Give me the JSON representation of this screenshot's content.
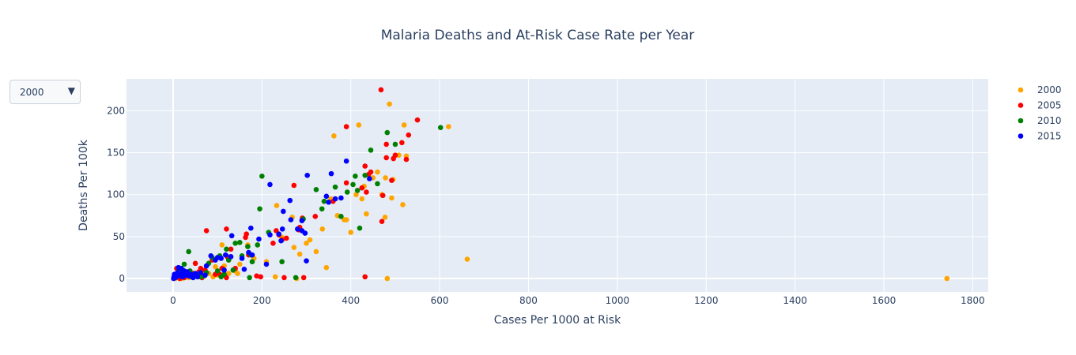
{
  "chart_data": {
    "type": "scatter",
    "title": "Malaria Deaths and At-Risk Case Rate per Year",
    "xlabel": "Cases Per 1000 at Risk",
    "ylabel": "Deaths Per 100k",
    "xlim": [
      -105,
      1835
    ],
    "ylim": [
      -16,
      238
    ],
    "xticks": [
      0,
      200,
      400,
      600,
      800,
      1000,
      1200,
      1400,
      1600,
      1800
    ],
    "yticks": [
      0,
      50,
      100,
      150,
      200
    ],
    "grid": true,
    "legend_position": "top-right",
    "series": [
      {
        "name": "2000",
        "color": "#FFA500",
        "points": [
          [
            1742,
            0
          ],
          [
            662,
            23
          ],
          [
            620,
            181
          ],
          [
            525,
            146
          ],
          [
            520,
            183
          ],
          [
            517,
            88
          ],
          [
            508,
            147
          ],
          [
            495,
            118
          ],
          [
            492,
            96
          ],
          [
            487,
            208
          ],
          [
            482,
            0
          ],
          [
            478,
            120
          ],
          [
            477,
            73
          ],
          [
            470,
            100
          ],
          [
            460,
            127
          ],
          [
            450,
            120
          ],
          [
            435,
            77
          ],
          [
            430,
            110
          ],
          [
            425,
            95
          ],
          [
            418,
            183
          ],
          [
            412,
            100
          ],
          [
            400,
            55
          ],
          [
            390,
            70
          ],
          [
            385,
            70
          ],
          [
            370,
            75
          ],
          [
            362,
            170
          ],
          [
            355,
            95
          ],
          [
            345,
            13
          ],
          [
            336,
            59
          ],
          [
            322,
            32
          ],
          [
            308,
            46
          ],
          [
            300,
            42
          ],
          [
            285,
            29
          ],
          [
            278,
            0
          ],
          [
            272,
            37
          ],
          [
            268,
            73
          ],
          [
            245,
            49
          ],
          [
            233,
            87
          ],
          [
            230,
            2
          ],
          [
            210,
            20
          ],
          [
            182,
            24
          ],
          [
            168,
            40
          ],
          [
            150,
            17
          ],
          [
            145,
            6
          ],
          [
            140,
            9
          ],
          [
            125,
            6
          ],
          [
            115,
            15
          ],
          [
            110,
            40
          ],
          [
            100,
            4
          ],
          [
            95,
            14
          ],
          [
            90,
            2
          ],
          [
            80,
            6
          ],
          [
            70,
            9
          ],
          [
            62,
            2
          ],
          [
            55,
            4
          ],
          [
            48,
            5
          ],
          [
            40,
            3
          ],
          [
            35,
            1
          ],
          [
            30,
            2
          ],
          [
            25,
            1
          ],
          [
            20,
            0
          ],
          [
            15,
            1
          ],
          [
            10,
            2
          ],
          [
            5,
            0
          ],
          [
            2,
            1
          ]
        ]
      },
      {
        "name": "2005",
        "color": "#FF0000",
        "points": [
          [
            550,
            189
          ],
          [
            530,
            171
          ],
          [
            525,
            142
          ],
          [
            515,
            162
          ],
          [
            500,
            147
          ],
          [
            496,
            143
          ],
          [
            492,
            117
          ],
          [
            480,
            160
          ],
          [
            480,
            144
          ],
          [
            472,
            99
          ],
          [
            470,
            68
          ],
          [
            468,
            225
          ],
          [
            445,
            127
          ],
          [
            440,
            124
          ],
          [
            435,
            103
          ],
          [
            432,
            134
          ],
          [
            432,
            2
          ],
          [
            425,
            108
          ],
          [
            390,
            181
          ],
          [
            390,
            114
          ],
          [
            360,
            92
          ],
          [
            320,
            74
          ],
          [
            294,
            1
          ],
          [
            291,
            72
          ],
          [
            285,
            61
          ],
          [
            282,
            58
          ],
          [
            272,
            111
          ],
          [
            255,
            48
          ],
          [
            250,
            1
          ],
          [
            245,
            46
          ],
          [
            238,
            52
          ],
          [
            232,
            57
          ],
          [
            225,
            42
          ],
          [
            197,
            2
          ],
          [
            188,
            3
          ],
          [
            170,
            28
          ],
          [
            165,
            53
          ],
          [
            163,
            49
          ],
          [
            140,
            12
          ],
          [
            130,
            35
          ],
          [
            122,
            26
          ],
          [
            120,
            59
          ],
          [
            120,
            1
          ],
          [
            115,
            4
          ],
          [
            110,
            12
          ],
          [
            105,
            5
          ],
          [
            95,
            5
          ],
          [
            88,
            22
          ],
          [
            75,
            57
          ],
          [
            72,
            10
          ],
          [
            65,
            1
          ],
          [
            62,
            12
          ],
          [
            58,
            8
          ],
          [
            55,
            3
          ],
          [
            50,
            18
          ],
          [
            45,
            6
          ],
          [
            40,
            2
          ],
          [
            35,
            6
          ],
          [
            30,
            3
          ],
          [
            25,
            1
          ],
          [
            22,
            7
          ],
          [
            18,
            2
          ],
          [
            15,
            0
          ],
          [
            12,
            4
          ],
          [
            8,
            12
          ],
          [
            5,
            1
          ]
        ]
      },
      {
        "name": "2010",
        "color": "#008000",
        "points": [
          [
            602,
            180
          ],
          [
            500,
            160
          ],
          [
            482,
            174
          ],
          [
            460,
            113
          ],
          [
            445,
            153
          ],
          [
            432,
            123
          ],
          [
            420,
            60
          ],
          [
            415,
            105
          ],
          [
            410,
            122
          ],
          [
            405,
            112
          ],
          [
            392,
            103
          ],
          [
            378,
            74
          ],
          [
            365,
            109
          ],
          [
            340,
            92
          ],
          [
            335,
            83
          ],
          [
            322,
            106
          ],
          [
            293,
            71
          ],
          [
            276,
            1
          ],
          [
            245,
            20
          ],
          [
            215,
            55
          ],
          [
            200,
            122
          ],
          [
            195,
            83
          ],
          [
            190,
            40
          ],
          [
            178,
            20
          ],
          [
            175,
            28
          ],
          [
            172,
            1
          ],
          [
            168,
            38
          ],
          [
            155,
            27
          ],
          [
            150,
            43
          ],
          [
            140,
            42
          ],
          [
            135,
            10
          ],
          [
            125,
            22
          ],
          [
            120,
            35
          ],
          [
            115,
            5
          ],
          [
            108,
            2
          ],
          [
            105,
            27
          ],
          [
            100,
            9
          ],
          [
            88,
            25
          ],
          [
            80,
            18
          ],
          [
            75,
            7
          ],
          [
            70,
            3
          ],
          [
            62,
            2
          ],
          [
            55,
            5
          ],
          [
            42,
            2
          ],
          [
            38,
            9
          ],
          [
            35,
            32
          ],
          [
            30,
            5
          ],
          [
            25,
            17
          ],
          [
            22,
            10
          ],
          [
            15,
            12
          ],
          [
            12,
            8
          ],
          [
            8,
            4
          ],
          [
            5,
            2
          ],
          [
            2,
            1
          ]
        ]
      },
      {
        "name": "2015",
        "color": "#0000FF",
        "points": [
          [
            442,
            119
          ],
          [
            390,
            140
          ],
          [
            378,
            96
          ],
          [
            365,
            95
          ],
          [
            356,
            125
          ],
          [
            350,
            91
          ],
          [
            345,
            98
          ],
          [
            302,
            123
          ],
          [
            300,
            21
          ],
          [
            297,
            54
          ],
          [
            290,
            57
          ],
          [
            290,
            69
          ],
          [
            280,
            59
          ],
          [
            263,
            93
          ],
          [
            265,
            70
          ],
          [
            248,
            80
          ],
          [
            246,
            59
          ],
          [
            243,
            45
          ],
          [
            238,
            53
          ],
          [
            218,
            52
          ],
          [
            218,
            112
          ],
          [
            210,
            17
          ],
          [
            193,
            47
          ],
          [
            178,
            28
          ],
          [
            175,
            60
          ],
          [
            170,
            31
          ],
          [
            160,
            11
          ],
          [
            155,
            24
          ],
          [
            132,
            51
          ],
          [
            130,
            26
          ],
          [
            118,
            28
          ],
          [
            115,
            10
          ],
          [
            108,
            24
          ],
          [
            100,
            25
          ],
          [
            95,
            22
          ],
          [
            85,
            27
          ],
          [
            75,
            15
          ],
          [
            72,
            4
          ],
          [
            62,
            7
          ],
          [
            55,
            2
          ],
          [
            50,
            6
          ],
          [
            45,
            1
          ],
          [
            40,
            5
          ],
          [
            35,
            3
          ],
          [
            32,
            8
          ],
          [
            28,
            4
          ],
          [
            25,
            9
          ],
          [
            22,
            2
          ],
          [
            20,
            6
          ],
          [
            18,
            12
          ],
          [
            15,
            3
          ],
          [
            12,
            13
          ],
          [
            10,
            7
          ],
          [
            8,
            4
          ],
          [
            6,
            2
          ],
          [
            5,
            1
          ],
          [
            4,
            3
          ],
          [
            3,
            5
          ],
          [
            2,
            2
          ],
          [
            1,
            0
          ]
        ]
      }
    ]
  },
  "controls": {
    "dropdown_value": "2000",
    "dropdown_caret": "▼"
  }
}
